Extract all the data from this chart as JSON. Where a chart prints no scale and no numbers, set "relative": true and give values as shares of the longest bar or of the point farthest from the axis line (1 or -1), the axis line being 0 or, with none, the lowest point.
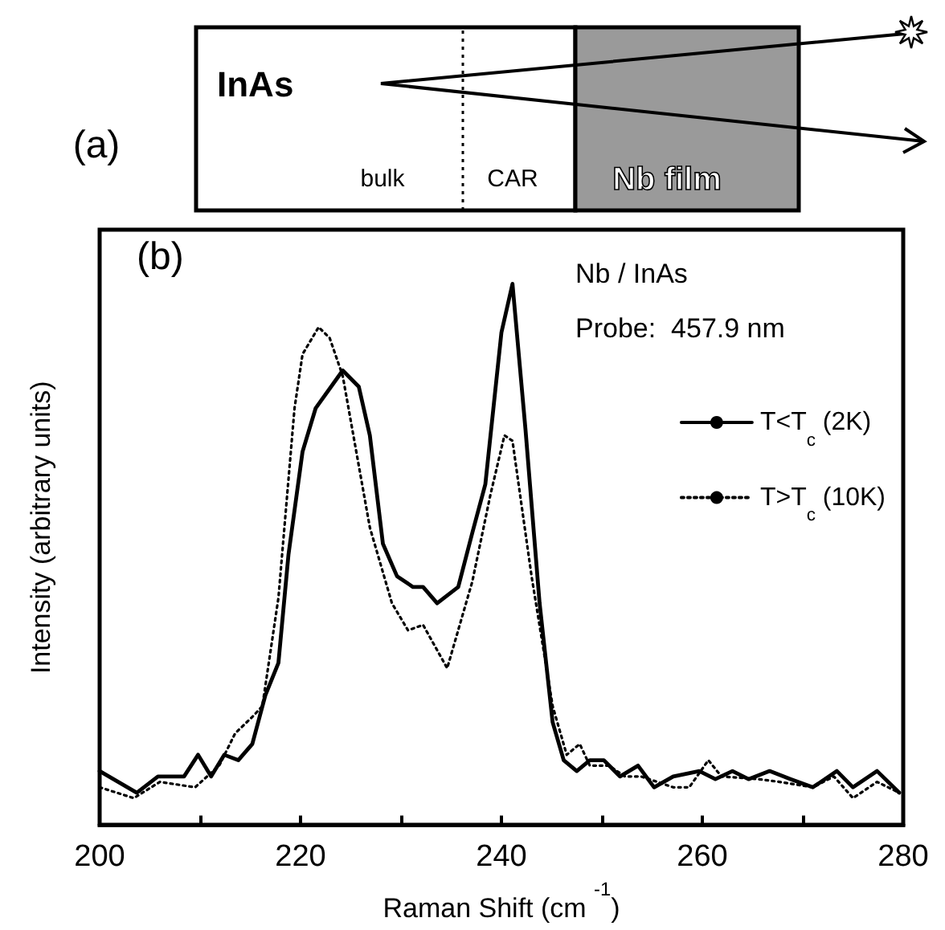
{
  "chart_data": {
    "type": "line",
    "xlabel": "Raman Shift (cm $^{-1}$)",
    "ylabel": "Intensity (arbitrary units)",
    "relative": true,
    "xlim": [
      200,
      280
    ],
    "xticks": [
      200,
      {
        "value": 210,
        "label": null
      },
      220,
      {
        "value": 230,
        "label": null
      },
      240,
      {
        "value": 250,
        "label": null
      },
      260,
      {
        "value": 270,
        "label": null
      },
      280
    ],
    "grid": false,
    "legend": "top right",
    "marker": "none",
    "annotations": [
      "(a)",
      "InAs",
      "bulk",
      "CAR",
      "Nb film",
      "(b)",
      "Nb / InAs",
      "Probe:  457.9 nm"
    ],
    "series": [
      {
        "name": "T<T$_{c}$ (2K)",
        "color": "#000000",
        "line_style": "solid",
        "x": [
          200,
          203.7,
          205.8,
          208.4,
          209.8,
          211.1,
          212.4,
          213.8,
          215.2,
          216.5,
          217.8,
          218.8,
          220.2,
          221.5,
          224.2,
          225.8,
          226.9,
          228.2,
          229.6,
          231.2,
          232.2,
          233.6,
          235.7,
          237.1,
          238.4,
          240.0,
          241.1,
          242.4,
          243.8,
          245.1,
          246.2,
          247.5,
          248.8,
          250.2,
          251.8,
          253.6,
          255.2,
          257.1,
          259.7,
          261.3,
          263.0,
          264.6,
          266.7,
          268.8,
          271.0,
          273.4,
          275.0,
          277.4,
          279.6
        ],
        "values": [
          0.1,
          0.06,
          0.09,
          0.09,
          0.13,
          0.09,
          0.13,
          0.12,
          0.15,
          0.24,
          0.3,
          0.5,
          0.69,
          0.77,
          0.84,
          0.81,
          0.72,
          0.52,
          0.46,
          0.44,
          0.44,
          0.41,
          0.44,
          0.54,
          0.63,
          0.91,
          1.0,
          0.73,
          0.41,
          0.19,
          0.12,
          0.1,
          0.12,
          0.12,
          0.09,
          0.11,
          0.07,
          0.09,
          0.1,
          0.085,
          0.1,
          0.085,
          0.1,
          0.085,
          0.07,
          0.1,
          0.07,
          0.1,
          0.06
        ]
      },
      {
        "name": "T>T$_{c}$ (10K)",
        "color": "#000000",
        "line_style": "dotted",
        "x": [
          200,
          203.4,
          206.0,
          209.5,
          211.9,
          213.5,
          215.2,
          216.2,
          217.8,
          219.4,
          220.2,
          221.8,
          222.9,
          224.2,
          226.9,
          229.1,
          230.7,
          232.2,
          234.6,
          237.1,
          238.9,
          240.3,
          241.1,
          243.0,
          245.1,
          246.5,
          247.8,
          248.8,
          250.7,
          252.3,
          253.9,
          255.5,
          257.1,
          258.7,
          260.6,
          261.9,
          265.6,
          267.7,
          271.0,
          273.1,
          275.0,
          277.4,
          279.6
        ],
        "values": [
          0.07,
          0.05,
          0.08,
          0.07,
          0.11,
          0.17,
          0.2,
          0.22,
          0.42,
          0.77,
          0.87,
          0.92,
          0.9,
          0.83,
          0.55,
          0.41,
          0.36,
          0.37,
          0.29,
          0.45,
          0.61,
          0.72,
          0.71,
          0.46,
          0.22,
          0.13,
          0.15,
          0.11,
          0.11,
          0.09,
          0.09,
          0.08,
          0.07,
          0.07,
          0.12,
          0.09,
          0.085,
          0.08,
          0.07,
          0.09,
          0.05,
          0.08,
          0.06
        ]
      }
    ]
  }
}
